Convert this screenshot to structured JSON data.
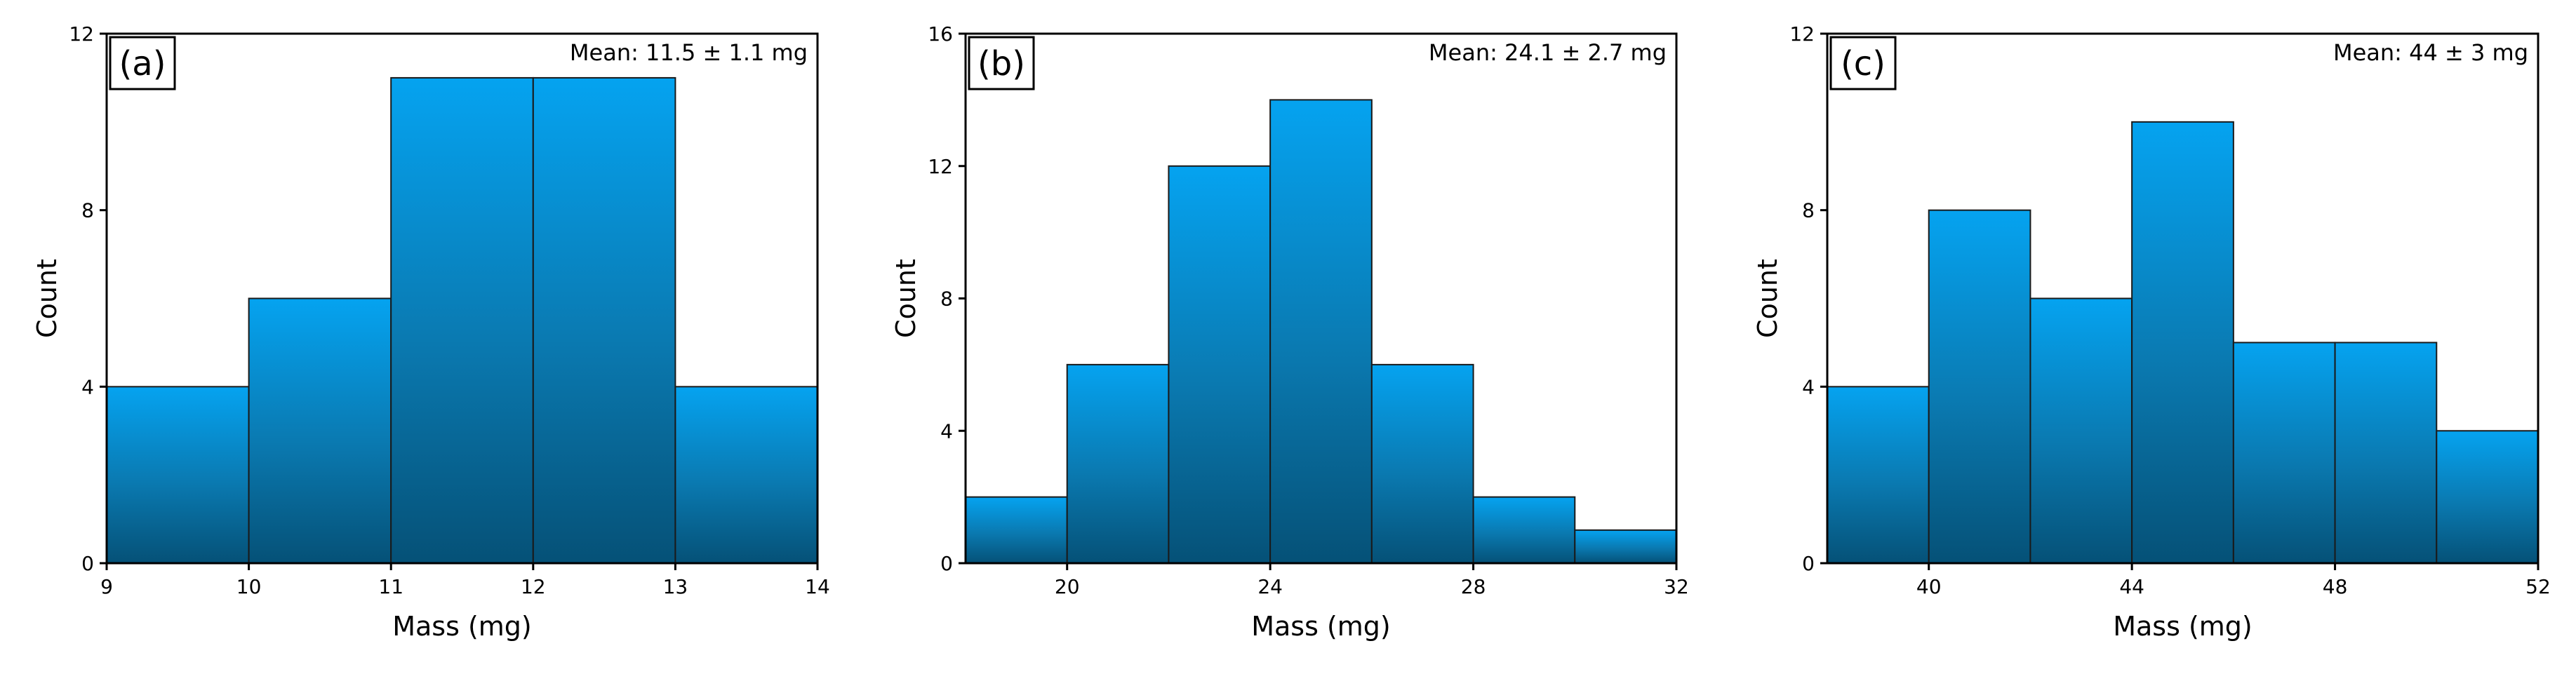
{
  "chart_data": [
    {
      "type": "bar",
      "subtype": "histogram",
      "panel_label": "(a)",
      "annotation": "Mean: 11.5 ± 1.1 mg",
      "xlabel": "Mass (mg)",
      "ylabel": "Count",
      "xlim": [
        9,
        14
      ],
      "ylim": [
        0,
        12
      ],
      "xticks": [
        "9",
        "10",
        "11",
        "12",
        "13",
        "14"
      ],
      "yticks": [
        "0",
        "4",
        "8",
        "12"
      ],
      "bins": [
        [
          9,
          10
        ],
        [
          10,
          11
        ],
        [
          11,
          12
        ],
        [
          12,
          13
        ],
        [
          13,
          14
        ]
      ],
      "values": [
        4,
        6,
        11,
        11,
        4
      ]
    },
    {
      "type": "bar",
      "subtype": "histogram",
      "panel_label": "(b)",
      "annotation": "Mean: 24.1 ± 2.7 mg",
      "xlabel": "Mass (mg)",
      "ylabel": "Count",
      "xlim": [
        18,
        32
      ],
      "ylim": [
        0,
        16
      ],
      "xticks": [
        "20",
        "24",
        "28",
        "32"
      ],
      "yticks": [
        "0",
        "4",
        "8",
        "12",
        "16"
      ],
      "bins": [
        [
          18,
          20
        ],
        [
          20,
          22
        ],
        [
          22,
          24
        ],
        [
          24,
          26
        ],
        [
          26,
          28
        ],
        [
          28,
          30
        ],
        [
          30,
          32
        ]
      ],
      "values": [
        2,
        6,
        12,
        14,
        6,
        2,
        1
      ]
    },
    {
      "type": "bar",
      "subtype": "histogram",
      "panel_label": "(c)",
      "annotation": "Mean: 44 ± 3 mg",
      "xlabel": "Mass (mg)",
      "ylabel": "Count",
      "xlim": [
        38,
        52
      ],
      "ylim": [
        0,
        12
      ],
      "xticks": [
        "40",
        "44",
        "48",
        "52"
      ],
      "yticks": [
        "0",
        "4",
        "8",
        "12"
      ],
      "bins": [
        [
          38,
          40
        ],
        [
          40,
          42
        ],
        [
          42,
          44
        ],
        [
          44,
          46
        ],
        [
          46,
          48
        ],
        [
          48,
          50
        ],
        [
          50,
          52
        ]
      ],
      "values": [
        4,
        8,
        6,
        10,
        5,
        5,
        3
      ]
    }
  ],
  "colors": {
    "bar_top": "#05A3F0",
    "bar_mid": "#0A79B0",
    "bar_bottom": "#055177",
    "axis": "#000000"
  }
}
